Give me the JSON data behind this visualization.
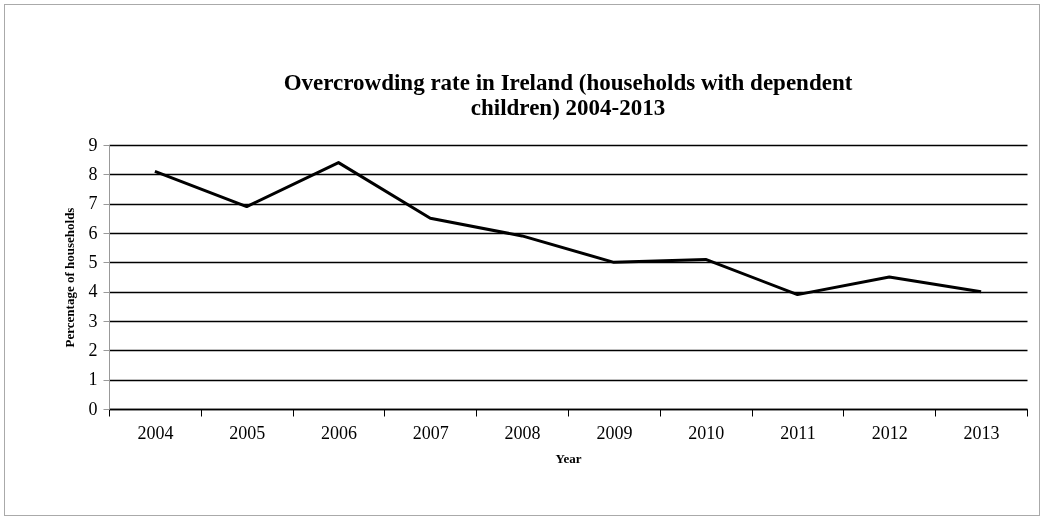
{
  "chart_data": {
    "type": "line",
    "title": "Overcrowding rate in Ireland (households with dependent children) 2004-2013",
    "xlabel": "Year",
    "ylabel": "Percentage of households",
    "categories": [
      "2004",
      "2005",
      "2006",
      "2007",
      "2008",
      "2009",
      "2010",
      "2011",
      "2012",
      "2013"
    ],
    "series": [
      {
        "color": "#000000",
        "values": [
          8.1,
          6.9,
          8.4,
          6.5,
          5.9,
          5.0,
          5.1,
          3.9,
          4.5,
          4.0
        ]
      }
    ],
    "ylim": [
      0,
      9
    ],
    "yticks": [
      0,
      1,
      2,
      3,
      4,
      5,
      6,
      7,
      8,
      9
    ],
    "grid": "y",
    "marker": "none",
    "line_style": "solid"
  }
}
